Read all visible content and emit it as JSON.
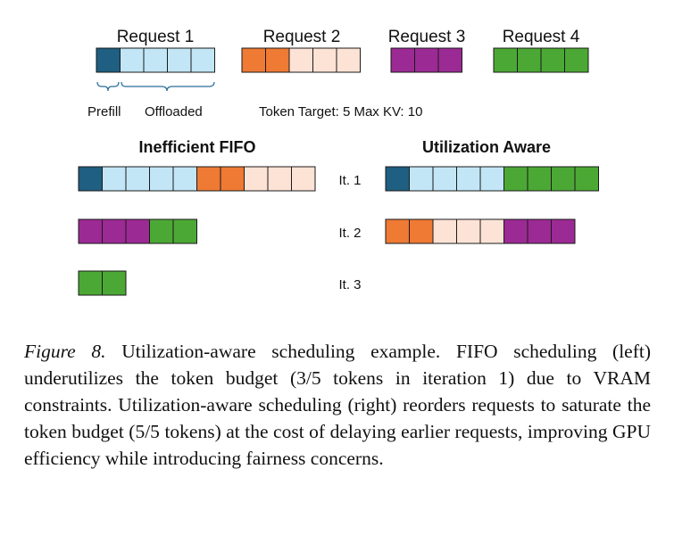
{
  "colors": {
    "prefill": "#1f5f82",
    "offloaded": "#c2e6f6",
    "req2_dark": "#ee7a34",
    "req2_light": "#fde3d5",
    "req3": "#9c2a94",
    "req4": "#4ca834",
    "outline": "#1a1a1a"
  },
  "requests": [
    {
      "label": "Request 1",
      "cells": [
        "prefill",
        "offloaded",
        "offloaded",
        "offloaded",
        "offloaded"
      ]
    },
    {
      "label": "Request 2",
      "cells": [
        "req2_dark",
        "req2_dark",
        "req2_light",
        "req2_light",
        "req2_light"
      ]
    },
    {
      "label": "Request 3",
      "cells": [
        "req3",
        "req3",
        "req3"
      ]
    },
    {
      "label": "Request 4",
      "cells": [
        "req4",
        "req4",
        "req4",
        "req4"
      ]
    }
  ],
  "legend": {
    "prefill": "Prefill",
    "offloaded": "Offloaded",
    "token_info": "Token Target: 5 Max KV: 10"
  },
  "schedules": {
    "left_title": "Inefficient FIFO",
    "right_title": "Utilization Aware",
    "iterations": [
      {
        "label": "It. 1",
        "fifo": [
          "prefill",
          "offloaded",
          "offloaded",
          "offloaded",
          "offloaded",
          "req2_dark",
          "req2_dark",
          "req2_light",
          "req2_light",
          "req2_light"
        ],
        "aware": [
          "prefill",
          "offloaded",
          "offloaded",
          "offloaded",
          "offloaded",
          "req4",
          "req4",
          "req4",
          "req4"
        ]
      },
      {
        "label": "It. 2",
        "fifo": [
          "req3",
          "req3",
          "req3",
          "req4",
          "req4"
        ],
        "aware": [
          "req2_dark",
          "req2_dark",
          "req2_light",
          "req2_light",
          "req2_light",
          "req3",
          "req3",
          "req3"
        ]
      },
      {
        "label": "It. 3",
        "fifo": [
          "req4",
          "req4"
        ],
        "aware": []
      }
    ]
  },
  "caption": {
    "figure_label": "Figure 8.",
    "text": "Utilization-aware scheduling example. FIFO scheduling (left) underutilizes the token budget (3/5 tokens in iteration 1) due to VRAM constraints. Utilization-aware scheduling (right) reorders requests to saturate the token budget (5/5 tokens) at the cost of delaying earlier requests, improving GPU efficiency while introducing fairness concerns."
  }
}
